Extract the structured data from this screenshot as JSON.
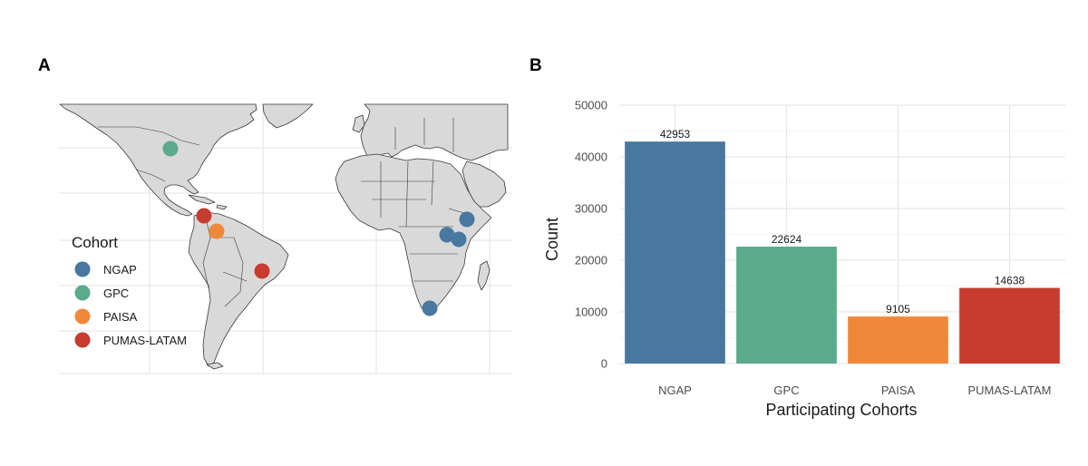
{
  "panels": {
    "a_label": "A",
    "b_label": "B"
  },
  "map": {
    "legend_title": "Cohort",
    "cohorts": [
      {
        "name": "NGAP",
        "color": "#4878A0"
      },
      {
        "name": "GPC",
        "color": "#5AAA8C"
      },
      {
        "name": "PAISA",
        "color": "#F0883A"
      },
      {
        "name": "PUMAS-LATAM",
        "color": "#C83B2F"
      }
    ],
    "sites": [
      {
        "cohort": "GPC",
        "place": "central United States"
      },
      {
        "cohort": "PUMAS-LATAM",
        "place": "Central America / Caribbean"
      },
      {
        "cohort": "PAISA",
        "place": "Colombia"
      },
      {
        "cohort": "PUMAS-LATAM",
        "place": "Brazil"
      },
      {
        "cohort": "NGAP",
        "place": "Ethiopia"
      },
      {
        "cohort": "NGAP",
        "place": "Uganda"
      },
      {
        "cohort": "NGAP",
        "place": "Kenya"
      },
      {
        "cohort": "NGAP",
        "place": "South Africa"
      }
    ]
  },
  "chart_data": {
    "type": "bar",
    "title": "",
    "xlabel": "Participating Cohorts",
    "ylabel": "Count",
    "categories": [
      "NGAP",
      "GPC",
      "PAISA",
      "PUMAS-LATAM"
    ],
    "values": [
      42953,
      22624,
      9105,
      14638
    ],
    "colors": [
      "#4878A0",
      "#5AAA8C",
      "#F0883A",
      "#C83B2F"
    ],
    "ylim": [
      0,
      50000
    ],
    "yticks": [
      0,
      10000,
      20000,
      30000,
      40000,
      50000
    ],
    "grid": true
  }
}
